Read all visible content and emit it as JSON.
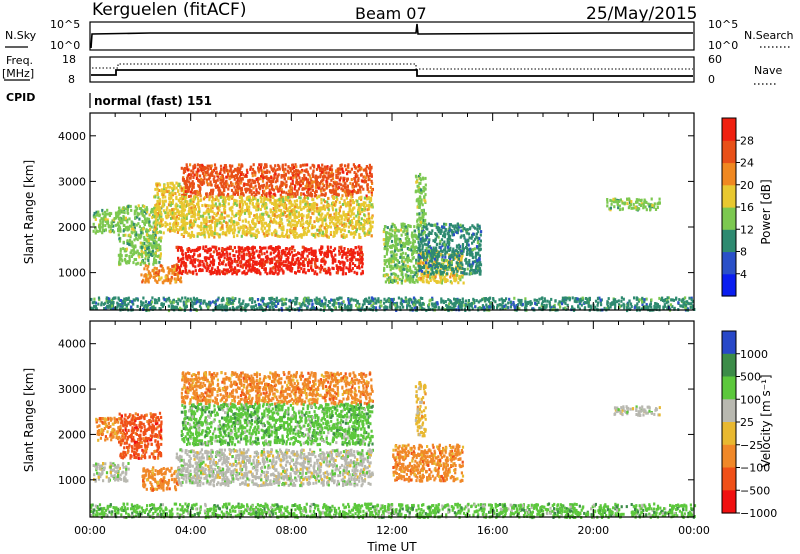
{
  "header": {
    "radar": "Kerguelen (fitACF)",
    "beam": "Beam 07",
    "date": "25/May/2015"
  },
  "top_panels": {
    "nsky_label": "N.Sky",
    "nsky_ticks": [
      "10^5",
      "10^0"
    ],
    "nsearch_label": "N.Search",
    "nsearch_ticks": [
      "10^5",
      "10^0"
    ],
    "freq_label": "Freq.",
    "freq_unit": "[MHz]",
    "freq_ticks": [
      "18",
      "8"
    ],
    "nave_label": "Nave",
    "nave_ticks": [
      "60",
      "0"
    ],
    "cpid_label": "CPID",
    "cpid_value": "normal (fast) 151"
  },
  "chart_data": [
    {
      "type": "heatmap",
      "name": "power",
      "xlabel": "",
      "ylabel": "Slant Range [km]",
      "xlim": [
        0,
        24
      ],
      "ylim": [
        180,
        4500
      ],
      "yticks": [
        1000,
        2000,
        3000,
        4000
      ],
      "colorbar": {
        "label": "Power [dB]",
        "ticks": [
          "4",
          "8",
          "12",
          "16",
          "20",
          "24",
          "28"
        ],
        "colors": [
          "#0a1ef0",
          "#2a50c8",
          "#2e8a70",
          "#7cc850",
          "#e8c830",
          "#f08820",
          "#e85018",
          "#f02010"
        ]
      },
      "regions": [
        {
          "t": [
            0.1,
            1.2
          ],
          "r": [
            1900,
            2400
          ],
          "level": 10
        },
        {
          "t": [
            1.1,
            2.8
          ],
          "r": [
            1200,
            2500
          ],
          "level": 12
        },
        {
          "t": [
            2.0,
            3.6
          ],
          "r": [
            800,
            1200
          ],
          "level": 18
        },
        {
          "t": [
            2.5,
            3.8
          ],
          "r": [
            1900,
            3000
          ],
          "level": 14
        },
        {
          "t": [
            3.4,
            10.8
          ],
          "r": [
            1000,
            1600
          ],
          "level": 28
        },
        {
          "t": [
            3.6,
            11.2
          ],
          "r": [
            2700,
            3400
          ],
          "level": 22
        },
        {
          "t": [
            3.6,
            11.2
          ],
          "r": [
            1800,
            2700
          ],
          "level": 15
        },
        {
          "t": [
            11.6,
            13.0
          ],
          "r": [
            800,
            2100
          ],
          "level": 10
        },
        {
          "t": [
            13.0,
            14.8
          ],
          "r": [
            800,
            1500
          ],
          "level": 15
        },
        {
          "t": [
            13.0,
            15.5
          ],
          "r": [
            1000,
            2100
          ],
          "level": 9
        },
        {
          "t": [
            12.9,
            13.3
          ],
          "r": [
            1900,
            3200
          ],
          "level": 11
        },
        {
          "t": [
            20.5,
            22.6
          ],
          "r": [
            2400,
            2650
          ],
          "level": 11
        },
        {
          "t": [
            0.0,
            24.0
          ],
          "r": [
            200,
            480
          ],
          "level": 9
        }
      ]
    },
    {
      "type": "heatmap",
      "name": "velocity",
      "xlabel": "Time UT",
      "ylabel": "Slant Range [km]",
      "xlim": [
        0,
        24
      ],
      "ylim": [
        180,
        4500
      ],
      "xticks": [
        "00:00",
        "04:00",
        "08:00",
        "12:00",
        "16:00",
        "20:00",
        "00:00"
      ],
      "yticks": [
        1000,
        2000,
        3000,
        4000
      ],
      "colorbar": {
        "label": "Velocity [m s⁻¹]",
        "ticks": [
          "1000",
          "500",
          "100",
          "25",
          "−25",
          "−100",
          "−500",
          "−1000"
        ],
        "colors": [
          "#2848c8",
          "#3c8c48",
          "#5cc83c",
          "#b8b8b0",
          "#e8b830",
          "#f08828",
          "#f05018",
          "#f01010"
        ]
      },
      "regions": [
        {
          "t": [
            0.2,
            1.2
          ],
          "r": [
            1900,
            2400
          ],
          "vel": "-100"
        },
        {
          "t": [
            1.1,
            2.8
          ],
          "r": [
            1500,
            2500
          ],
          "vel": "-500"
        },
        {
          "t": [
            0.1,
            1.5
          ],
          "r": [
            1000,
            1400
          ],
          "vel": "25"
        },
        {
          "t": [
            2.0,
            3.5
          ],
          "r": [
            800,
            1300
          ],
          "vel": "-100"
        },
        {
          "t": [
            3.4,
            11.2
          ],
          "r": [
            900,
            1700
          ],
          "vel": "25"
        },
        {
          "t": [
            3.6,
            11.2
          ],
          "r": [
            2700,
            3400
          ],
          "vel": "-100"
        },
        {
          "t": [
            3.6,
            11.2
          ],
          "r": [
            1800,
            2700
          ],
          "vel": "100"
        },
        {
          "t": [
            12.0,
            14.8
          ],
          "r": [
            1000,
            1800
          ],
          "vel": "-100"
        },
        {
          "t": [
            12.9,
            13.3
          ],
          "r": [
            2000,
            3200
          ],
          "vel": "-25"
        },
        {
          "t": [
            20.8,
            22.6
          ],
          "r": [
            2450,
            2650
          ],
          "vel": "25"
        },
        {
          "t": [
            0.0,
            24.0
          ],
          "r": [
            200,
            500
          ],
          "vel": "100"
        }
      ]
    }
  ]
}
